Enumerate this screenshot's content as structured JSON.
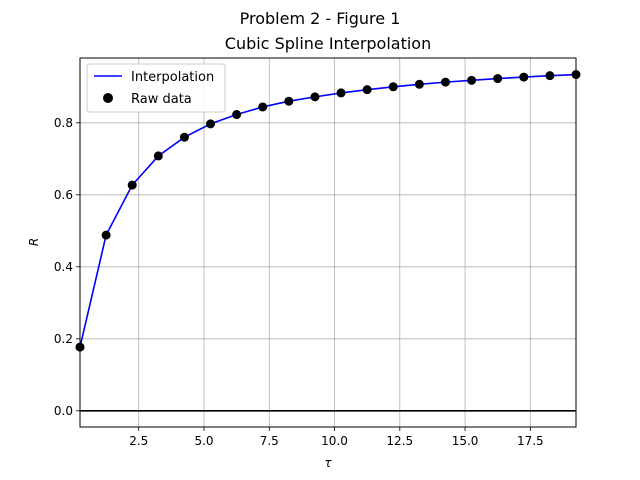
{
  "suptitle": "Problem 2 - Figure 1",
  "chart_data": {
    "type": "line",
    "title": "Cubic Spline Interpolation",
    "xlabel": "τ",
    "ylabel": "R",
    "xlim": [
      0.25,
      19.25
    ],
    "ylim": [
      -0.045,
      0.98
    ],
    "xticks": [
      2.5,
      5.0,
      7.5,
      10.0,
      12.5,
      15.0,
      17.5
    ],
    "xtick_labels": [
      "2.5",
      "5.0",
      "7.5",
      "10.0",
      "12.5",
      "15.0",
      "17.5"
    ],
    "yticks": [
      0.0,
      0.2,
      0.4,
      0.6,
      0.8
    ],
    "ytick_labels": [
      "0.0",
      "0.2",
      "0.4",
      "0.6",
      "0.8"
    ],
    "grid": true,
    "hline": 0.0,
    "legend_position": "upper-left",
    "series": [
      {
        "name": "Interpolation",
        "kind": "line",
        "color": "#0000ff",
        "x": [
          0.25,
          1.25,
          2.25,
          3.25,
          4.25,
          5.25,
          6.25,
          7.25,
          8.25,
          9.25,
          10.25,
          11.25,
          12.25,
          13.25,
          14.25,
          15.25,
          16.25,
          17.25,
          18.25,
          19.25
        ],
        "y": [
          0.177,
          0.488,
          0.627,
          0.708,
          0.76,
          0.797,
          0.823,
          0.844,
          0.86,
          0.872,
          0.883,
          0.892,
          0.9,
          0.907,
          0.913,
          0.918,
          0.923,
          0.927,
          0.931,
          0.934
        ]
      },
      {
        "name": "Raw data",
        "kind": "scatter",
        "color": "#000000",
        "x": [
          0.25,
          1.25,
          2.25,
          3.25,
          4.25,
          5.25,
          6.25,
          7.25,
          8.25,
          9.25,
          10.25,
          11.25,
          12.25,
          13.25,
          14.25,
          15.25,
          16.25,
          17.25,
          18.25,
          19.25
        ],
        "y": [
          0.177,
          0.488,
          0.627,
          0.708,
          0.76,
          0.797,
          0.823,
          0.844,
          0.86,
          0.872,
          0.883,
          0.892,
          0.9,
          0.907,
          0.913,
          0.918,
          0.923,
          0.927,
          0.931,
          0.934
        ]
      }
    ]
  }
}
